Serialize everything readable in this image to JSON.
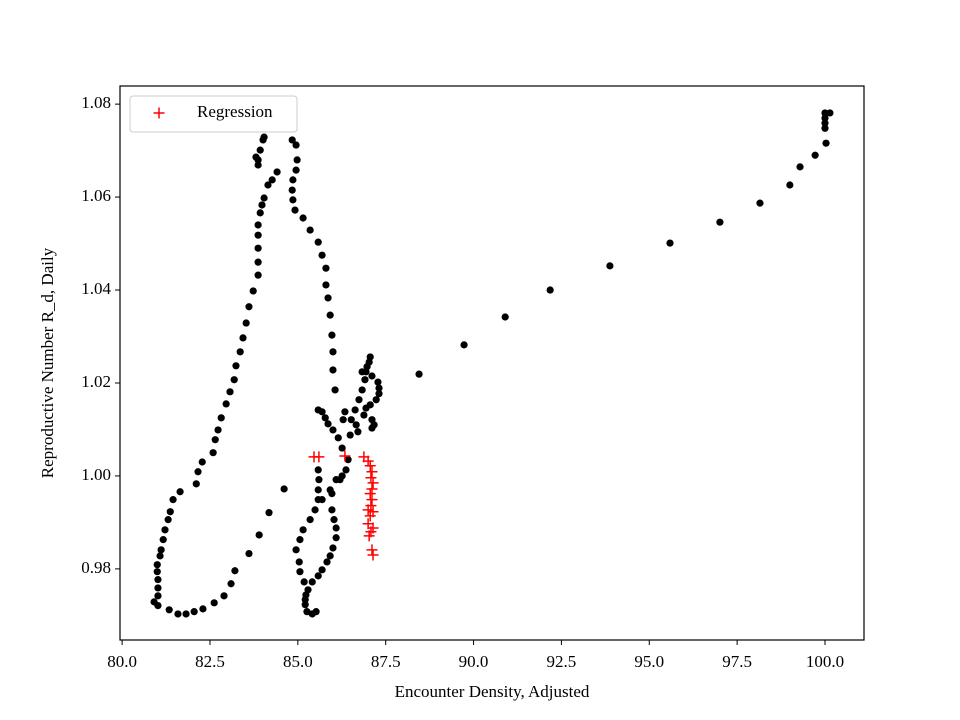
{
  "chart_data": {
    "type": "scatter",
    "xlabel": "Encounter Density, Adjusted",
    "ylabel": "Reproductive Number R_d, Daily",
    "xlim": [
      79.94,
      101.11
    ],
    "ylim": [
      0.9647,
      1.0839
    ],
    "xticks": [
      {
        "value": 80,
        "label": "80.0"
      },
      82.5,
      {
        "value": 85,
        "label": "85.0"
      },
      87.5,
      {
        "value": 90,
        "label": "90.0"
      },
      92.5,
      {
        "value": 95,
        "label": "95.0"
      },
      97.5,
      {
        "value": 100,
        "label": "100.0"
      }
    ],
    "yticks": [
      0.98,
      {
        "value": 1,
        "label": "1.00"
      },
      1.02,
      1.04,
      1.06,
      1.08
    ],
    "grid": false,
    "legend": "upper left",
    "series": [
      {
        "color": "#000000",
        "marker": "dot",
        "x": [
          100.14,
          100.0,
          100.0,
          100.0,
          100.0,
          100.03,
          99.72,
          99.29,
          99.0,
          98.15,
          97.01,
          95.59,
          93.88,
          92.18,
          90.9,
          89.73,
          88.45,
          87.06,
          87.03,
          86.97,
          86.94,
          87.11,
          87.28,
          87.31,
          87.31,
          87.23,
          87.06,
          86.94,
          86.88,
          87.11,
          87.17,
          87.11,
          86.83,
          86.91,
          86.83,
          86.74,
          86.63,
          86.52,
          86.66,
          86.71,
          86.34,
          86.29,
          86.49,
          85.58,
          85.69,
          85.78,
          85.86,
          86.0,
          86.15,
          86.26,
          86.43,
          86.37,
          86.2,
          85.92,
          85.69,
          85.49,
          85.35,
          85.15,
          85.06,
          84.95,
          85.04,
          85.06,
          85.18,
          85.23,
          85.21,
          85.26,
          85.41,
          85.52,
          86.26,
          86.09,
          85.97,
          85.97,
          86.03,
          86.09,
          86.09,
          86.0,
          85.92,
          85.83,
          85.69,
          85.58,
          85.41,
          85.29,
          85.21,
          85.58,
          85.6,
          85.58,
          85.58,
          84.84,
          84.95,
          84.98,
          84.95,
          84.86,
          84.84,
          84.86,
          84.92,
          85.15,
          85.35,
          85.58,
          85.69,
          85.8,
          85.8,
          85.86,
          85.92,
          85.97,
          86.0,
          86.0,
          86.06,
          84.01,
          84.04,
          83.93,
          83.87,
          83.81,
          83.87,
          84.41,
          84.27,
          84.15,
          84.04,
          83.98,
          83.93,
          83.87,
          83.87,
          83.87,
          83.87,
          83.87,
          83.73,
          83.61,
          83.53,
          83.44,
          83.36,
          83.24,
          83.19,
          83.07,
          82.96,
          82.82,
          82.73,
          82.65,
          82.59,
          82.28,
          82.16,
          82.11,
          81.65,
          81.45,
          81.37,
          81.31,
          81.22,
          81.17,
          81.11,
          81.08,
          81.0,
          81.0,
          81.02,
          81.02,
          81.02,
          80.91,
          81.02,
          81.34,
          81.59,
          81.82,
          82.05,
          82.3,
          82.62,
          82.9,
          83.1,
          83.21,
          83.61,
          83.9,
          84.18,
          84.61
        ],
        "values": [
          1.0781,
          1.0781,
          1.077,
          1.0759,
          1.0748,
          1.0716,
          1.069,
          1.0665,
          1.0626,
          1.0587,
          1.0546,
          1.0501,
          1.0452,
          1.04,
          1.0342,
          1.0282,
          1.0219,
          1.0256,
          1.0245,
          1.0235,
          1.0224,
          1.0215,
          1.0202,
          1.0189,
          1.0177,
          1.0164,
          1.0153,
          1.0146,
          1.0131,
          1.0121,
          1.011,
          1.0103,
          1.0224,
          1.0207,
          1.0185,
          1.0164,
          1.0142,
          1.0121,
          1.011,
          1.0095,
          1.0138,
          1.0121,
          1.0088,
          1.0142,
          1.0138,
          1.0125,
          1.0112,
          1.0099,
          1.0082,
          1.006,
          1.0035,
          1.0013,
          0.9992,
          0.997,
          0.9949,
          0.9927,
          0.9906,
          0.9884,
          0.9863,
          0.9841,
          0.9815,
          0.9794,
          0.9772,
          0.9744,
          0.9723,
          0.9708,
          0.9703,
          0.9708,
          1.0,
          0.9992,
          0.9962,
          0.9927,
          0.9906,
          0.9888,
          0.9867,
          0.9845,
          0.9828,
          0.9815,
          0.9798,
          0.9785,
          0.9772,
          0.9755,
          0.9734,
          1.0013,
          0.9992,
          0.997,
          0.9949,
          1.0723,
          1.0712,
          1.068,
          1.0658,
          1.0637,
          1.0615,
          1.0594,
          1.0572,
          1.0555,
          1.0529,
          1.0503,
          1.0475,
          1.0447,
          1.0411,
          1.0383,
          1.0346,
          1.0303,
          1.0267,
          1.0228,
          1.0185,
          1.0723,
          1.0729,
          1.0701,
          1.068,
          1.0686,
          1.0669,
          1.0654,
          1.0637,
          1.0626,
          1.0598,
          1.0583,
          1.0566,
          1.054,
          1.0518,
          1.049,
          1.046,
          1.0432,
          1.0398,
          1.0364,
          1.0329,
          1.0297,
          1.0267,
          1.0237,
          1.0207,
          1.0181,
          1.0155,
          1.0125,
          1.0099,
          1.0078,
          1.005,
          1.003,
          1.0009,
          0.9983,
          0.9966,
          0.9949,
          0.9923,
          0.9906,
          0.9884,
          0.9863,
          0.9841,
          0.9828,
          0.9809,
          0.9794,
          0.9777,
          0.9759,
          0.9742,
          0.9729,
          0.9721,
          0.9712,
          0.9703,
          0.9703,
          0.9708,
          0.9714,
          0.9727,
          0.9742,
          0.9768,
          0.9796,
          0.9833,
          0.9873,
          0.9921,
          0.9972
        ]
      },
      {
        "name": "Regression",
        "color": "#ff0000",
        "marker": "plus",
        "x": [
          85.46,
          85.6,
          86.34,
          86.88,
          87.0,
          87.06,
          87.11,
          87.08,
          87.14,
          87.11,
          87.06,
          87.11,
          87.08,
          87.0,
          87.14,
          87.06,
          87.0,
          87.14,
          87.08,
          87.03,
          87.11,
          87.14
        ],
        "values": [
          1.0041,
          1.0041,
          1.0043,
          1.0041,
          1.0032,
          1.0022,
          1.0009,
          0.9996,
          0.9985,
          0.9972,
          0.9962,
          0.9949,
          0.9936,
          0.9927,
          0.9923,
          0.9914,
          0.9897,
          0.9888,
          0.988,
          0.9871,
          0.9841,
          0.983
        ]
      }
    ]
  }
}
